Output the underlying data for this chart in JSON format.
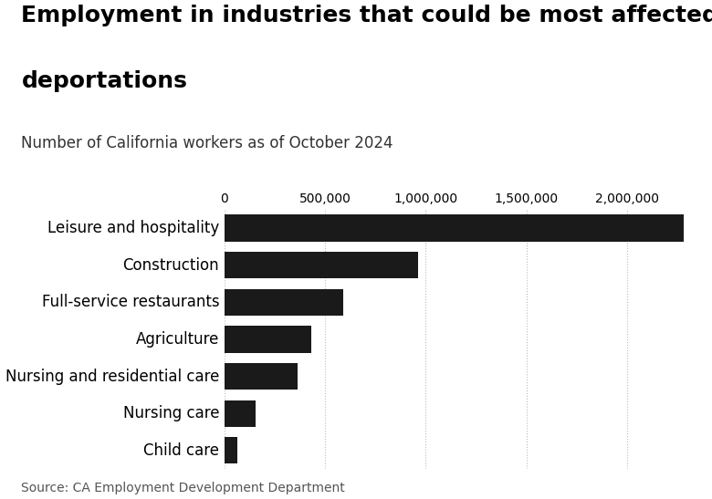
{
  "title_line1": "Employment in industries that could be most affected by",
  "title_line2": "deportations",
  "subtitle": "Number of California workers as of October 2024",
  "source": "Source: CA Employment Development Department",
  "categories": [
    "Leisure and hospitality",
    "Construction",
    "Full-service restaurants",
    "Agriculture",
    "Nursing and residential care",
    "Nursing care",
    "Child care"
  ],
  "values": [
    2280000,
    960000,
    590000,
    430000,
    365000,
    155000,
    65000
  ],
  "bar_color": "#1a1a1a",
  "background_color": "#ffffff",
  "xlim_max": 2350000,
  "xticks": [
    0,
    500000,
    1000000,
    1500000,
    2000000
  ],
  "xtick_labels": [
    "0",
    "500,000",
    "1,000,000",
    "1,500,000",
    "2,000,000"
  ],
  "title_fontsize": 18,
  "subtitle_fontsize": 12,
  "label_fontsize": 12,
  "tick_fontsize": 10,
  "source_fontsize": 10,
  "bar_height": 0.72
}
